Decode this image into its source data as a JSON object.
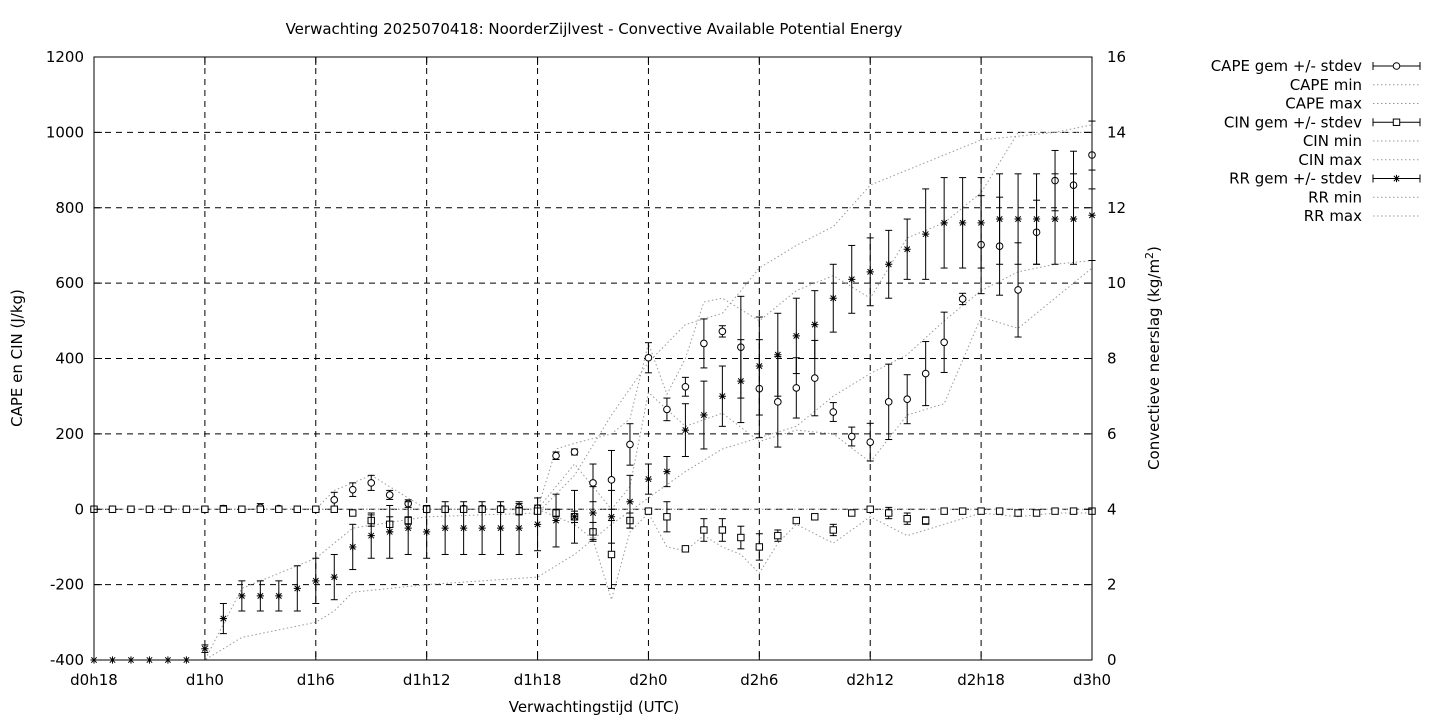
{
  "chart_data": {
    "type": "scatter",
    "title": "Verwachting 2025070418: NoorderZijlvest - Convective Available Potential Energy",
    "xlabel": "Verwachtingstijd (UTC)",
    "ylabel": "CAPE en CIN (J/kg)",
    "y2label_main": "Convectieve neerslag (kg/m",
    "y2label_sup": "2",
    "y2label_end": ")",
    "xlim": [
      -6,
      48
    ],
    "ylim": [
      -400,
      1200
    ],
    "y2lim": [
      0,
      16
    ],
    "grid": true,
    "legend_position": "top-right outside",
    "x_ticks": [
      {
        "x": -6,
        "label": "d0h18"
      },
      {
        "x": 0,
        "label": "d1h0"
      },
      {
        "x": 6,
        "label": "d1h6"
      },
      {
        "x": 12,
        "label": "d1h12"
      },
      {
        "x": 18,
        "label": "d1h18"
      },
      {
        "x": 24,
        "label": "d2h0"
      },
      {
        "x": 30,
        "label": "d2h6"
      },
      {
        "x": 36,
        "label": "d2h12"
      },
      {
        "x": 42,
        "label": "d2h18"
      },
      {
        "x": 48,
        "label": "d3h0"
      }
    ],
    "y_ticks": [
      "-400",
      "-200",
      "0",
      "200",
      "400",
      "600",
      "800",
      "1000",
      "1200"
    ],
    "y2_ticks": [
      "0",
      "2",
      "4",
      "6",
      "8",
      "10",
      "12",
      "14",
      "16"
    ],
    "legend": [
      {
        "label": "CAPE gem +/- stdev",
        "style": "errorbar",
        "marker": "circle"
      },
      {
        "label": "CAPE min",
        "style": "dotted"
      },
      {
        "label": "CAPE max",
        "style": "dotted"
      },
      {
        "label": "CIN gem +/- stdev",
        "style": "errorbar",
        "marker": "square"
      },
      {
        "label": "CIN min",
        "style": "dotted"
      },
      {
        "label": "CIN max",
        "style": "dotted"
      },
      {
        "label": "RR gem +/- stdev",
        "style": "errorbar",
        "marker": "star"
      },
      {
        "label": "RR min",
        "style": "dotted"
      },
      {
        "label": "RR max",
        "style": "dotted"
      }
    ],
    "x": [
      -6,
      -5,
      -4,
      -3,
      -2,
      -1,
      0,
      1,
      2,
      3,
      4,
      5,
      6,
      7,
      8,
      9,
      10,
      11,
      12,
      13,
      14,
      15,
      16,
      17,
      18,
      19,
      20,
      21,
      22,
      23,
      24,
      25,
      26,
      27,
      28,
      29,
      30,
      31,
      32,
      33,
      34,
      35,
      36,
      37,
      38,
      39,
      40,
      41,
      42,
      43,
      44,
      45,
      46,
      47,
      48
    ],
    "series": [
      {
        "name": "CAPE gem +/- stdev",
        "axis": "y",
        "marker": "circle",
        "x": [
          -6,
          -5,
          -4,
          -3,
          -2,
          -1,
          0,
          1,
          2,
          3,
          4,
          5,
          6,
          7,
          8,
          9,
          10,
          11,
          12,
          13,
          14,
          15,
          16,
          17,
          18,
          19,
          20,
          21,
          22,
          23,
          24,
          25,
          26,
          27,
          28,
          29,
          30,
          31,
          32,
          33,
          34,
          35,
          36,
          37,
          38,
          39,
          40,
          41,
          42,
          43,
          44,
          45,
          46,
          47,
          48
        ],
        "mean": [
          0,
          0,
          0,
          0,
          0,
          0,
          0,
          2,
          0,
          5,
          2,
          0,
          0,
          25,
          52,
          70,
          38,
          15,
          0,
          0,
          2,
          2,
          2,
          5,
          3,
          142,
          152,
          70,
          78,
          172,
          402,
          265,
          325,
          440,
          472,
          430,
          320,
          285,
          322,
          348,
          258,
          193,
          178,
          285,
          292,
          360,
          443,
          558,
          702,
          698,
          582,
          735,
          872,
          860,
          940
        ],
        "stdev": [
          0,
          0,
          0,
          0,
          0,
          0,
          5,
          8,
          5,
          10,
          5,
          3,
          3,
          20,
          18,
          20,
          12,
          10,
          5,
          5,
          5,
          5,
          5,
          10,
          8,
          10,
          8,
          50,
          78,
          55,
          40,
          30,
          25,
          65,
          15,
          135,
          130,
          120,
          80,
          100,
          25,
          25,
          50,
          100,
          65,
          85,
          80,
          15,
          130,
          130,
          125,
          85,
          80,
          90,
          90
        ]
      },
      {
        "name": "CAPE min",
        "axis": "y",
        "style": "dotted",
        "x": [
          -6,
          0,
          6,
          7,
          8,
          12,
          18,
          20,
          22,
          23,
          24,
          26,
          28,
          30,
          32,
          34,
          36,
          38,
          40,
          42,
          44,
          46,
          48
        ],
        "values": [
          0,
          0,
          0,
          0,
          0,
          0,
          0,
          120,
          0,
          60,
          310,
          220,
          255,
          180,
          210,
          200,
          125,
          250,
          280,
          510,
          480,
          560,
          640
        ]
      },
      {
        "name": "CAPE max",
        "axis": "y",
        "style": "dotted",
        "x": [
          -6,
          0,
          6,
          7,
          8,
          9,
          10,
          12,
          18,
          19,
          20,
          22,
          23,
          24,
          25,
          26,
          27,
          28,
          30,
          32,
          34,
          36,
          38,
          40,
          42,
          44,
          46,
          48
        ],
        "values": [
          0,
          0,
          0,
          50,
          70,
          90,
          60,
          0,
          0,
          160,
          175,
          200,
          240,
          440,
          305,
          400,
          550,
          560,
          500,
          580,
          620,
          560,
          720,
          760,
          840,
          1000,
          1000,
          1000
        ]
      },
      {
        "name": "CIN gem +/- stdev",
        "axis": "y",
        "marker": "square",
        "x": [
          -6,
          -5,
          -4,
          -3,
          -2,
          -1,
          0,
          1,
          2,
          3,
          4,
          5,
          6,
          7,
          8,
          9,
          10,
          11,
          12,
          13,
          14,
          15,
          16,
          17,
          18,
          19,
          20,
          21,
          22,
          23,
          24,
          25,
          26,
          27,
          28,
          29,
          30,
          31,
          32,
          33,
          34,
          35,
          36,
          37,
          38,
          39,
          40,
          41,
          42,
          43,
          44,
          45,
          46,
          47,
          48
        ],
        "mean": [
          0,
          0,
          0,
          0,
          0,
          0,
          0,
          0,
          0,
          0,
          0,
          0,
          0,
          0,
          -10,
          -30,
          -40,
          -30,
          0,
          0,
          0,
          0,
          0,
          -5,
          -5,
          -10,
          -20,
          -60,
          -120,
          -30,
          -5,
          -20,
          -105,
          -55,
          -55,
          -75,
          -100,
          -70,
          -30,
          -20,
          -55,
          -10,
          0,
          -10,
          -25,
          -30,
          -5,
          -5,
          -5,
          -5,
          -10,
          -10,
          -5,
          -5,
          -5
        ],
        "stdev": [
          0,
          0,
          0,
          0,
          0,
          0,
          0,
          0,
          0,
          0,
          0,
          0,
          0,
          0,
          5,
          15,
          20,
          10,
          5,
          5,
          5,
          5,
          5,
          10,
          5,
          10,
          15,
          25,
          90,
          20,
          5,
          40,
          5,
          30,
          30,
          30,
          35,
          15,
          5,
          5,
          15,
          5,
          5,
          15,
          15,
          10,
          5,
          5,
          5,
          5,
          5,
          5,
          5,
          5,
          5
        ]
      },
      {
        "name": "CIN min",
        "axis": "y",
        "style": "dotted",
        "x": [
          -6,
          0,
          6,
          12,
          18,
          20,
          21,
          22,
          23,
          24,
          25,
          26,
          27,
          28,
          29,
          30,
          31,
          32,
          34,
          36,
          38,
          40,
          42,
          44,
          46,
          48
        ],
        "values": [
          0,
          0,
          0,
          0,
          0,
          -40,
          -80,
          -240,
          -60,
          -10,
          -100,
          -110,
          -70,
          -100,
          -120,
          -170,
          -90,
          -40,
          -90,
          -20,
          -70,
          -40,
          -10,
          -20,
          -10,
          -10
        ]
      },
      {
        "name": "CIN max",
        "axis": "y",
        "style": "dotted",
        "x": [
          -6,
          48
        ],
        "values": [
          0,
          0
        ]
      },
      {
        "name": "RR gem +/- stdev",
        "axis": "y2",
        "marker": "star",
        "x": [
          -6,
          -5,
          -4,
          -3,
          -2,
          -1,
          0,
          1,
          2,
          3,
          4,
          5,
          6,
          7,
          8,
          9,
          10,
          11,
          12,
          13,
          14,
          15,
          16,
          17,
          18,
          19,
          20,
          21,
          22,
          23,
          24,
          25,
          26,
          27,
          28,
          29,
          30,
          31,
          32,
          33,
          34,
          35,
          36,
          37,
          38,
          39,
          40,
          41,
          42,
          43,
          44,
          45,
          46,
          47,
          48
        ],
        "mean": [
          0,
          0,
          0,
          0,
          0,
          0,
          0.3,
          1.1,
          1.7,
          1.7,
          1.7,
          1.9,
          2.1,
          2.2,
          3.0,
          3.3,
          3.4,
          3.5,
          3.4,
          3.5,
          3.5,
          3.5,
          3.5,
          3.5,
          3.6,
          3.7,
          3.8,
          3.9,
          3.8,
          4.2,
          4.8,
          5.0,
          6.1,
          6.5,
          7.0,
          7.4,
          7.8,
          8.1,
          8.6,
          8.9,
          9.6,
          10.1,
          10.3,
          10.5,
          10.9,
          11.3,
          11.6,
          11.6,
          11.6,
          11.7,
          11.7,
          11.7,
          11.7,
          11.7,
          11.8
        ],
        "stdev": [
          0,
          0,
          0,
          0,
          0,
          0,
          0.1,
          0.4,
          0.4,
          0.4,
          0.4,
          0.6,
          0.6,
          0.6,
          0.6,
          0.6,
          0.7,
          0.7,
          0.7,
          0.7,
          0.7,
          0.7,
          0.7,
          0.7,
          0.7,
          0.7,
          0.7,
          0.7,
          0.7,
          0.7,
          0.4,
          0.4,
          0.7,
          0.9,
          0.8,
          1.1,
          1.3,
          1.1,
          1.0,
          0.9,
          0.9,
          0.9,
          0.9,
          0.9,
          0.8,
          1.2,
          1.2,
          1.2,
          1.2,
          1.2,
          1.2,
          1.2,
          1.2,
          1.2,
          1.2
        ]
      },
      {
        "name": "RR min",
        "axis": "y2",
        "style": "dotted",
        "x": [
          -6,
          0,
          1,
          2,
          3,
          6,
          7,
          8,
          12,
          18,
          20,
          22,
          24,
          26,
          28,
          30,
          32,
          34,
          36,
          38,
          40,
          42,
          44,
          46,
          48
        ],
        "values": [
          0,
          0,
          0.3,
          0.6,
          0.7,
          1.0,
          1.3,
          1.8,
          2.0,
          2.2,
          2.8,
          3.6,
          4.3,
          5.0,
          5.6,
          5.9,
          6.2,
          7.0,
          7.6,
          8.1,
          9.0,
          9.8,
          10.3,
          10.5,
          10.6
        ]
      },
      {
        "name": "RR max",
        "axis": "y2",
        "style": "dotted",
        "x": [
          -6,
          0,
          2,
          3,
          6,
          7,
          8,
          12,
          18,
          20,
          22,
          24,
          26,
          28,
          30,
          32,
          34,
          36,
          38,
          40,
          42,
          44,
          46,
          48
        ],
        "values": [
          0,
          0,
          1.9,
          2.1,
          2.7,
          3.1,
          3.5,
          3.8,
          3.9,
          4.9,
          6.5,
          7.9,
          8.9,
          9.2,
          10.4,
          11.0,
          11.5,
          12.6,
          13.0,
          13.4,
          13.8,
          13.9,
          14.0,
          14.2
        ]
      }
    ]
  }
}
